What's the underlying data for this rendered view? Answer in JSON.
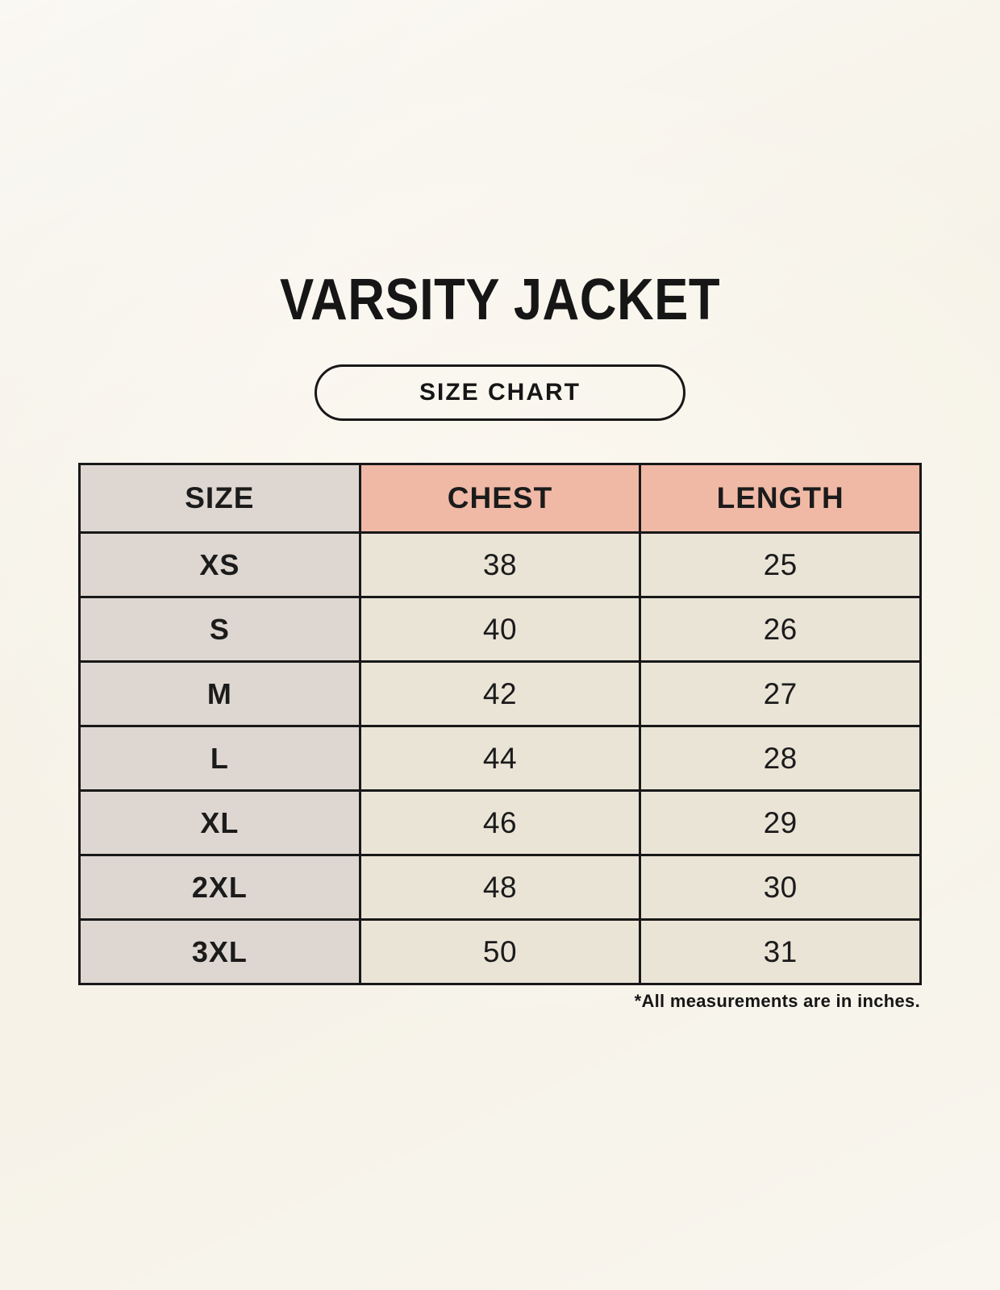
{
  "title": "VARSITY JACKET",
  "badge_label": "SIZE CHART",
  "footnote": "*All measurements are in inches.",
  "chart_data": {
    "type": "table",
    "title": "VARSITY JACKET",
    "subtitle": "SIZE CHART",
    "columns": [
      "SIZE",
      "CHEST",
      "LENGTH"
    ],
    "rows": [
      {
        "size": "XS",
        "chest": "38",
        "length": "25"
      },
      {
        "size": "S",
        "chest": "40",
        "length": "26"
      },
      {
        "size": "M",
        "chest": "42",
        "length": "27"
      },
      {
        "size": "L",
        "chest": "44",
        "length": "28"
      },
      {
        "size": "XL",
        "chest": "46",
        "length": "29"
      },
      {
        "size": "2XL",
        "chest": "48",
        "length": "30"
      },
      {
        "size": "3XL",
        "chest": "50",
        "length": "31"
      }
    ],
    "units": "inches",
    "note": "*All measurements are in inches."
  },
  "colors": {
    "page_background": "#f6f2e8",
    "size_column_bg": "#ded7d1",
    "measure_header_bg": "#f0b9a6",
    "data_cell_bg": "#eae4d7",
    "table_border": "#181818",
    "text": "#1b1b1b"
  }
}
